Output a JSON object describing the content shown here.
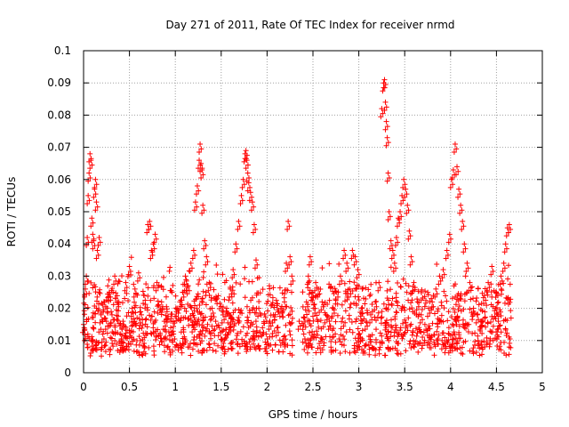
{
  "chart_data": {
    "type": "scatter",
    "title": "Day 271 of 2011, Rate Of TEC Index for receiver nrmd",
    "xlabel": "GPS time / hours",
    "ylabel": "ROTI / TECUs",
    "xlim": [
      0,
      5
    ],
    "ylim": [
      0,
      0.1
    ],
    "grid": true,
    "marker": "plus",
    "color": "#ff0000",
    "x_ticks": [
      "0",
      "0.5",
      "1",
      "1.5",
      "2",
      "2.5",
      "3",
      "3.5",
      "4",
      "4.5",
      "5"
    ],
    "y_ticks": [
      "0",
      "0.01",
      "0.02",
      "0.03",
      "0.04",
      "0.05",
      "0.06",
      "0.07",
      "0.08",
      "0.09",
      "0.1"
    ],
    "series": [
      {
        "name": "ROTI",
        "x": [
          0.0,
          0.02,
          0.03,
          0.04,
          0.05,
          0.06,
          0.07,
          0.08,
          0.09,
          0.1,
          0.11,
          0.12,
          0.13,
          0.14,
          0.15,
          0.17,
          0.19,
          0.21,
          0.23,
          0.25,
          0.28,
          0.31,
          0.34,
          0.37,
          0.4,
          0.43,
          0.46,
          0.5,
          0.53,
          0.56,
          0.6,
          0.63,
          0.66,
          0.7,
          0.72,
          0.74,
          0.76,
          0.78,
          0.8,
          0.82,
          0.85,
          0.88,
          0.91,
          0.95,
          0.98,
          1.02,
          1.05,
          1.08,
          1.11,
          1.14,
          1.17,
          1.2,
          1.22,
          1.24,
          1.26,
          1.27,
          1.28,
          1.29,
          1.3,
          1.32,
          1.34,
          1.37,
          1.4,
          1.44,
          1.48,
          1.52,
          1.56,
          1.6,
          1.63,
          1.66,
          1.69,
          1.72,
          1.74,
          1.76,
          1.77,
          1.78,
          1.79,
          1.8,
          1.82,
          1.84,
          1.86,
          1.88,
          1.91,
          1.95,
          1.99,
          2.03,
          2.07,
          2.11,
          2.15,
          2.19,
          2.21,
          2.23,
          2.25,
          2.27,
          2.35,
          2.4,
          2.43,
          2.45,
          2.47,
          2.49,
          2.51,
          2.53,
          2.56,
          2.6,
          2.64,
          2.68,
          2.72,
          2.76,
          2.8,
          2.84,
          2.87,
          2.9,
          2.93,
          2.96,
          2.99,
          3.03,
          3.08,
          3.13,
          3.18,
          3.22,
          3.25,
          3.27,
          3.28,
          3.29,
          3.3,
          3.31,
          3.32,
          3.33,
          3.35,
          3.37,
          3.39,
          3.41,
          3.43,
          3.45,
          3.47,
          3.49,
          3.51,
          3.53,
          3.55,
          3.57,
          3.6,
          3.64,
          3.68,
          3.72,
          3.76,
          3.8,
          3.84,
          3.88,
          3.92,
          3.96,
          3.99,
          4.01,
          4.03,
          4.05,
          4.07,
          4.09,
          4.11,
          4.13,
          4.15,
          4.18,
          4.21,
          4.25,
          4.29,
          4.33,
          4.37,
          4.41,
          4.45,
          4.49,
          4.52,
          4.55,
          4.58,
          4.6,
          4.62,
          4.64
        ],
        "y": [
          0.015,
          0.026,
          0.03,
          0.042,
          0.055,
          0.062,
          0.068,
          0.066,
          0.048,
          0.043,
          0.041,
          0.057,
          0.06,
          0.053,
          0.038,
          0.042,
          0.018,
          0.012,
          0.022,
          0.016,
          0.025,
          0.018,
          0.03,
          0.022,
          0.012,
          0.016,
          0.028,
          0.033,
          0.02,
          0.026,
          0.031,
          0.018,
          0.024,
          0.046,
          0.047,
          0.038,
          0.04,
          0.043,
          0.028,
          0.021,
          0.022,
          0.016,
          0.019,
          0.014,
          0.012,
          0.02,
          0.022,
          0.025,
          0.03,
          0.027,
          0.034,
          0.038,
          0.053,
          0.058,
          0.066,
          0.071,
          0.065,
          0.063,
          0.052,
          0.041,
          0.036,
          0.028,
          0.02,
          0.016,
          0.014,
          0.018,
          0.02,
          0.026,
          0.032,
          0.04,
          0.047,
          0.055,
          0.06,
          0.068,
          0.069,
          0.066,
          0.062,
          0.059,
          0.056,
          0.053,
          0.046,
          0.035,
          0.02,
          0.014,
          0.012,
          0.016,
          0.018,
          0.014,
          0.02,
          0.022,
          0.034,
          0.047,
          0.036,
          0.03,
          0.016,
          0.012,
          0.022,
          0.03,
          0.036,
          0.025,
          0.02,
          0.028,
          0.026,
          0.022,
          0.018,
          0.016,
          0.02,
          0.025,
          0.03,
          0.038,
          0.034,
          0.026,
          0.038,
          0.036,
          0.032,
          0.02,
          0.016,
          0.018,
          0.022,
          0.028,
          0.082,
          0.09,
          0.091,
          0.084,
          0.078,
          0.073,
          0.062,
          0.05,
          0.041,
          0.038,
          0.034,
          0.042,
          0.048,
          0.05,
          0.055,
          0.06,
          0.057,
          0.052,
          0.044,
          0.036,
          0.028,
          0.022,
          0.018,
          0.015,
          0.02,
          0.022,
          0.026,
          0.03,
          0.032,
          0.038,
          0.043,
          0.06,
          0.063,
          0.071,
          0.064,
          0.057,
          0.052,
          0.047,
          0.04,
          0.034,
          0.028,
          0.02,
          0.018,
          0.016,
          0.024,
          0.028,
          0.033,
          0.02,
          0.016,
          0.03,
          0.034,
          0.04,
          0.045,
          0.046
        ]
      }
    ],
    "noise_band": {
      "ymin": 0.005,
      "ymax": 0.032,
      "density": "dense"
    }
  }
}
